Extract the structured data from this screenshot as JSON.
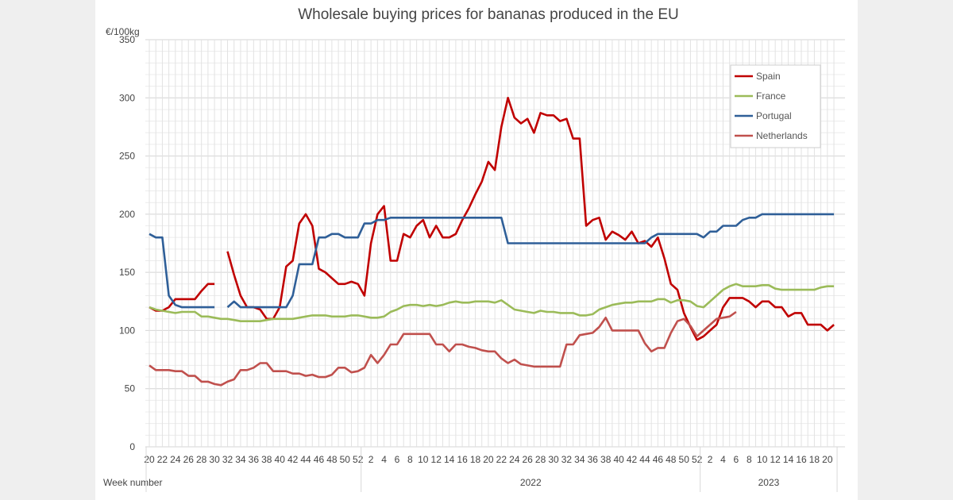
{
  "chart_data": {
    "type": "line",
    "title": "Wholesale buying prices for bananas produced in the EU",
    "ylabel": "€/100kg",
    "xlabel": "Week number",
    "ylim": [
      0,
      350
    ],
    "yticks": [
      0,
      50,
      100,
      150,
      200,
      250,
      300,
      350
    ],
    "grid": true,
    "legend_position": "top-right",
    "year_groups": [
      {
        "year": "",
        "weeks": [
          20,
          21,
          22,
          23,
          24,
          25,
          26,
          27,
          28,
          29,
          30,
          31,
          32,
          33,
          34,
          35,
          36,
          37,
          38,
          39,
          40,
          41,
          42,
          43,
          44,
          45,
          46,
          47,
          48,
          49,
          50,
          51,
          52
        ]
      },
      {
        "year": "2022",
        "weeks": [
          1,
          2,
          3,
          4,
          5,
          6,
          7,
          8,
          9,
          10,
          11,
          12,
          13,
          14,
          15,
          16,
          17,
          18,
          19,
          20,
          21,
          22,
          23,
          24,
          25,
          26,
          27,
          28,
          29,
          30,
          31,
          32,
          33,
          34,
          35,
          36,
          37,
          38,
          39,
          40,
          41,
          42,
          43,
          44,
          45,
          46,
          47,
          48,
          49,
          50,
          51,
          52
        ]
      },
      {
        "year": "2023",
        "weeks": [
          1,
          2,
          3,
          4,
          5,
          6,
          7,
          8,
          9,
          10,
          11,
          12,
          13,
          14,
          15,
          16,
          17,
          18,
          19,
          20,
          21
        ]
      }
    ],
    "series": [
      {
        "name": "Spain",
        "color": "#c00000",
        "values": [
          120,
          117,
          117,
          120,
          127,
          127,
          127,
          127,
          134,
          140,
          140,
          null,
          168,
          148,
          130,
          120,
          120,
          118,
          110,
          110,
          120,
          155,
          160,
          192,
          200,
          190,
          153,
          150,
          145,
          140,
          140,
          142,
          140,
          130,
          175,
          200,
          207,
          160,
          160,
          183,
          180,
          190,
          195,
          180,
          190,
          180,
          180,
          183,
          195,
          205,
          217,
          228,
          245,
          238,
          275,
          300,
          283,
          278,
          282,
          270,
          287,
          285,
          285,
          280,
          282,
          265,
          265,
          190,
          195,
          197,
          178,
          185,
          182,
          178,
          185,
          175,
          177,
          172,
          180,
          162,
          140,
          135,
          115,
          103,
          92,
          95,
          100,
          105,
          120,
          128,
          128,
          128,
          125,
          120,
          125,
          125,
          120,
          120,
          112,
          115,
          115,
          105,
          105,
          105,
          100,
          105
        ]
      },
      {
        "name": "France",
        "color": "#9bbb59",
        "values": [
          120,
          118,
          117,
          116,
          115,
          116,
          116,
          116,
          112,
          112,
          111,
          110,
          110,
          109,
          108,
          108,
          108,
          108,
          109,
          110,
          110,
          110,
          110,
          111,
          112,
          113,
          113,
          113,
          112,
          112,
          112,
          113,
          113,
          112,
          111,
          111,
          112,
          116,
          118,
          121,
          122,
          122,
          121,
          122,
          121,
          122,
          124,
          125,
          124,
          124,
          125,
          125,
          125,
          124,
          126,
          122,
          118,
          117,
          116,
          115,
          117,
          116,
          116,
          115,
          115,
          115,
          113,
          113,
          114,
          118,
          120,
          122,
          123,
          124,
          124,
          125,
          125,
          125,
          127,
          127,
          124,
          126,
          126,
          125,
          121,
          120,
          125,
          130,
          135,
          138,
          140,
          138,
          138,
          138,
          139,
          139,
          136,
          135,
          135,
          135,
          135,
          135,
          135,
          137,
          138,
          138
        ]
      },
      {
        "name": "Portugal",
        "color": "#2f5f98",
        "values": [
          183,
          180,
          180,
          130,
          122,
          120,
          120,
          120,
          120,
          120,
          120,
          null,
          120,
          125,
          120,
          120,
          120,
          120,
          120,
          120,
          120,
          120,
          130,
          157,
          157,
          157,
          180,
          180,
          183,
          183,
          180,
          180,
          180,
          192,
          192,
          195,
          195,
          197,
          197,
          197,
          197,
          197,
          197,
          197,
          197,
          197,
          197,
          197,
          197,
          197,
          197,
          197,
          197,
          197,
          197,
          175,
          175,
          175,
          175,
          175,
          175,
          175,
          175,
          175,
          175,
          175,
          175,
          175,
          175,
          175,
          175,
          175,
          175,
          175,
          175,
          175,
          175,
          180,
          183,
          183,
          183,
          183,
          183,
          183,
          183,
          180,
          185,
          185,
          190,
          190,
          190,
          195,
          197,
          197,
          200,
          200,
          200,
          200,
          200,
          200,
          200,
          200,
          200,
          200,
          200,
          200
        ]
      },
      {
        "name": "Netherlands",
        "color": "#c0504d",
        "values": [
          70,
          66,
          66,
          66,
          65,
          65,
          61,
          61,
          56,
          56,
          54,
          53,
          56,
          58,
          66,
          66,
          68,
          72,
          72,
          65,
          65,
          65,
          63,
          63,
          61,
          62,
          60,
          60,
          62,
          68,
          68,
          64,
          65,
          68,
          79,
          72,
          79,
          88,
          88,
          97,
          97,
          97,
          97,
          97,
          88,
          88,
          82,
          88,
          88,
          86,
          85,
          83,
          82,
          82,
          76,
          72,
          75,
          71,
          70,
          69,
          69,
          69,
          69,
          69,
          88,
          88,
          96,
          97,
          98,
          103,
          111,
          100,
          100,
          100,
          100,
          100,
          89,
          82,
          85,
          85,
          98,
          108,
          110,
          104,
          95,
          100,
          105,
          110,
          111,
          112,
          116,
          null,
          null,
          null,
          null,
          null,
          null,
          null,
          null,
          null,
          null,
          null,
          null,
          null,
          null,
          null
        ]
      }
    ]
  }
}
